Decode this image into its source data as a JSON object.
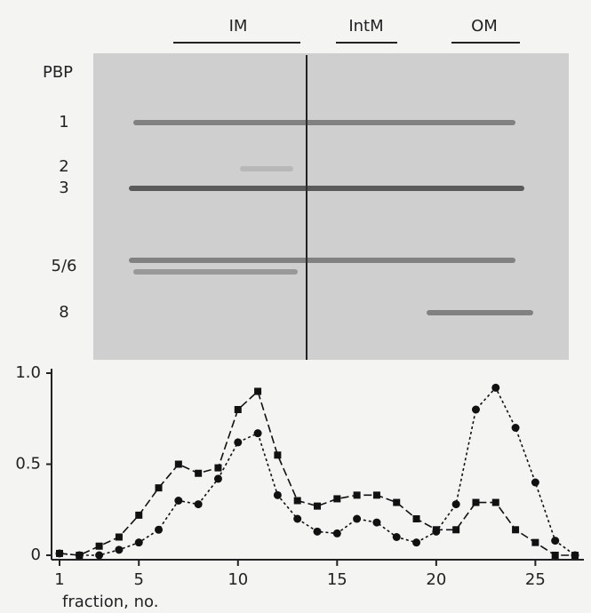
{
  "gel": {
    "headers": [
      "IM",
      "IntM",
      "OM"
    ],
    "lane_label": "PBP",
    "band_labels": [
      "1",
      "2",
      "3",
      "5/6",
      "8"
    ]
  },
  "chart_data": {
    "type": "line",
    "x_label": "fraction, no.",
    "x": [
      1,
      2,
      3,
      4,
      5,
      6,
      7,
      8,
      9,
      10,
      11,
      12,
      13,
      14,
      15,
      16,
      17,
      18,
      19,
      20,
      21,
      22,
      23,
      24,
      25,
      26,
      27
    ],
    "series": [
      {
        "color": "#111111",
        "marker": "square",
        "dash": "9 4",
        "values": [
          0.01,
          0.0,
          0.05,
          0.1,
          0.22,
          0.37,
          0.5,
          0.45,
          0.48,
          0.8,
          0.9,
          0.55,
          0.3,
          0.27,
          0.31,
          0.33,
          0.33,
          0.29,
          0.2,
          0.14,
          0.14,
          0.29,
          0.29,
          0.14,
          0.07,
          0.0,
          0.0
        ]
      },
      {
        "color": "#111111",
        "marker": "circle",
        "dash": "3 3",
        "values": [
          0.01,
          0.0,
          0.0,
          0.03,
          0.07,
          0.14,
          0.3,
          0.28,
          0.42,
          0.62,
          0.67,
          0.33,
          0.2,
          0.13,
          0.12,
          0.2,
          0.18,
          0.1,
          0.07,
          0.13,
          0.28,
          0.8,
          0.92,
          0.7,
          0.4,
          0.08,
          0.0
        ]
      }
    ],
    "xlim": [
      1,
      27
    ],
    "xticks": [
      1,
      5,
      10,
      15,
      20,
      25
    ],
    "ylim": [
      0,
      1
    ],
    "yticks": [
      0,
      0.5,
      {
        "value": 1,
        "label": "1.0"
      }
    ]
  }
}
